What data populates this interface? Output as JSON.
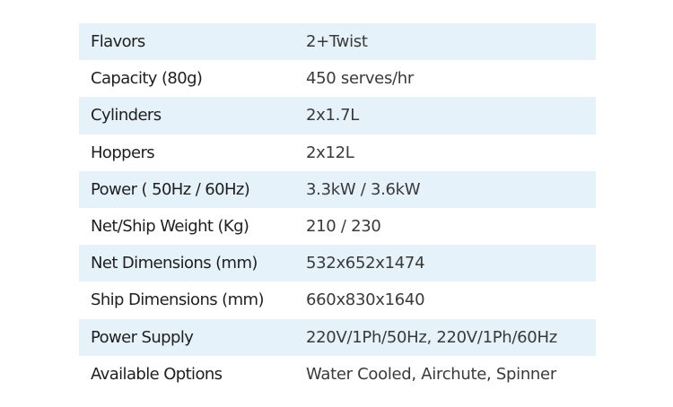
{
  "spec_table": {
    "shaded_color": "#e6f2fa",
    "rows": [
      {
        "label": "Flavors",
        "value": "2+Twist"
      },
      {
        "label": "Capacity (80g)",
        "value": "450 serves/hr"
      },
      {
        "label": "Cylinders",
        "value": "2x1.7L"
      },
      {
        "label": "Hoppers",
        "value": "2x12L"
      },
      {
        "label": "Power ( 50Hz / 60Hz)",
        "value": "3.3kW / 3.6kW"
      },
      {
        "label": "Net/Ship Weight (Kg)",
        "value": "210 / 230"
      },
      {
        "label": "Net Dimensions (mm)",
        "value": "532x652x1474"
      },
      {
        "label": "Ship Dimensions (mm)",
        "value": "660x830x1640"
      },
      {
        "label": "Power Supply",
        "value": "220V/1Ph/50Hz, 220V/1Ph/60Hz"
      },
      {
        "label": "Available Options",
        "value": "Water Cooled, Airchute, Spinner"
      }
    ]
  }
}
